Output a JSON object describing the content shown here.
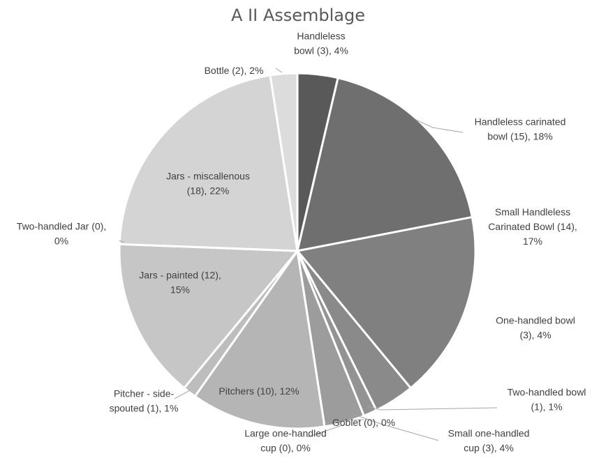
{
  "chart_data": {
    "type": "pie",
    "title": "A II Assemblage",
    "slices": [
      {
        "category": "Handleless bowl",
        "count": 3,
        "label": [
          "Handleless",
          "bowl (3), 4%"
        ],
        "color": "#595959"
      },
      {
        "category": "Handleless carinated bowl",
        "count": 15,
        "label": [
          "Handleless carinated",
          "bowl (15), 18%"
        ],
        "color": "#6f6f6f"
      },
      {
        "category": "Small Handleless Carinated Bowl",
        "count": 14,
        "label": [
          "Small Handleless",
          "Carinated Bowl (14),",
          "17%"
        ],
        "color": "#808080"
      },
      {
        "category": "One-handled bowl",
        "count": 3,
        "label": [
          "One-handled bowl",
          "(3), 4%"
        ],
        "color": "#8a8a8a"
      },
      {
        "category": "Two-handled bowl",
        "count": 1,
        "label": [
          "Two-handled bowl",
          "(1), 1%"
        ],
        "color": "#939393"
      },
      {
        "category": "Small one-handled cup",
        "count": 3,
        "label": [
          "Small one-handled",
          "cup (3), 4%"
        ],
        "color": "#9c9c9c"
      },
      {
        "category": "Goblet",
        "count": 0,
        "label": [
          "Goblet (0), 0%"
        ],
        "color": "#a3a3a3"
      },
      {
        "category": "Large one-handled cup",
        "count": 0,
        "label": [
          "Large one-handled",
          "cup  (0), 0%"
        ],
        "color": "#a8a8a8"
      },
      {
        "category": "Pitchers",
        "count": 10,
        "label": [
          "Pitchers (10), 12%"
        ],
        "color": "#b5b5b5"
      },
      {
        "category": "Pitcher - side-spouted",
        "count": 1,
        "label": [
          "Pitcher - side-",
          "spouted (1), 1%"
        ],
        "color": "#bdbdbd"
      },
      {
        "category": "Jars - painted",
        "count": 12,
        "label": [
          "Jars - painted (12),",
          "15%"
        ],
        "color": "#c6c6c6"
      },
      {
        "category": "Two-handled Jar",
        "count": 0,
        "label": [
          "Two-handled Jar (0),",
          "0%"
        ],
        "color": "#cccccc"
      },
      {
        "category": "Jars - miscallenous",
        "count": 18,
        "label": [
          "Jars - miscallenous",
          "(18), 22%"
        ],
        "color": "#d4d4d4"
      },
      {
        "category": "Bottle",
        "count": 2,
        "label": [
          "Bottle (2), 2%"
        ],
        "color": "#dcdcdc"
      }
    ]
  }
}
